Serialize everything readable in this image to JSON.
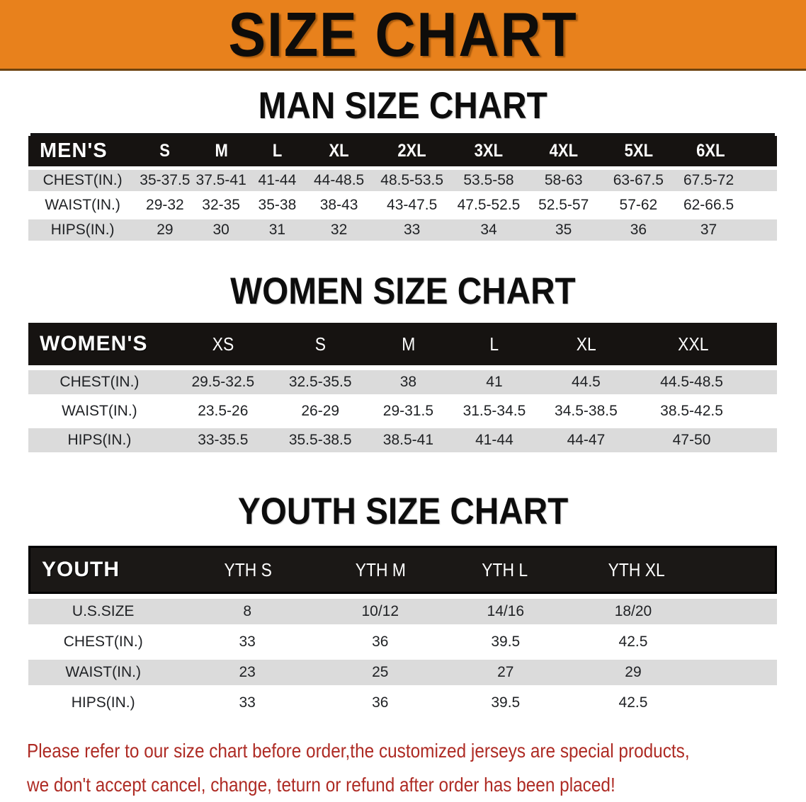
{
  "banner": {
    "title": "SIZE CHART"
  },
  "colors": {
    "banner_orange": "#E8811C",
    "banner_bottom_edge": "#6E4310",
    "table_header_black": "#161311",
    "row_stripe_gray": "#DBDBDB",
    "note_red": "#AE2B24"
  },
  "sections": [
    {
      "title": "MAN SIZE CHART",
      "table": {
        "header_label": "MEN'S",
        "columns": [
          "S",
          "M",
          "L",
          "XL",
          "2XL",
          "3XL",
          "4XL",
          "5XL",
          "6XL"
        ],
        "rows": [
          {
            "label": "CHEST(IN.)",
            "values": [
              "35-37.5",
              "37.5-41",
              "41-44",
              "44-48.5",
              "48.5-53.5",
              "53.5-58",
              "58-63",
              "63-67.5",
              "67.5-72"
            ]
          },
          {
            "label": "WAIST(IN.)",
            "values": [
              "29-32",
              "32-35",
              "35-38",
              "38-43",
              "43-47.5",
              "47.5-52.5",
              "52.5-57",
              "57-62",
              "62-66.5"
            ]
          },
          {
            "label": "HIPS(IN.)",
            "values": [
              "29",
              "30",
              "31",
              "32",
              "33",
              "34",
              "35",
              "36",
              "37"
            ]
          }
        ]
      }
    },
    {
      "title": "WOMEN SIZE CHART",
      "table": {
        "header_label": "WOMEN'S",
        "columns": [
          "XS",
          "S",
          "M",
          "L",
          "XL",
          "XXL"
        ],
        "rows": [
          {
            "label": "CHEST(IN.)",
            "values": [
              "29.5-32.5",
              "32.5-35.5",
              "38",
              "41",
              "44.5",
              "44.5-48.5"
            ]
          },
          {
            "label": "WAIST(IN.)",
            "values": [
              "23.5-26",
              "26-29",
              "29-31.5",
              "31.5-34.5",
              "34.5-38.5",
              "38.5-42.5"
            ]
          },
          {
            "label": "HIPS(IN.)",
            "values": [
              "33-35.5",
              "35.5-38.5",
              "38.5-41",
              "41-44",
              "44-47",
              "47-50"
            ]
          }
        ]
      }
    },
    {
      "title": "YOUTH SIZE CHART",
      "table": {
        "header_label": "YOUTH",
        "columns": [
          "YTH S",
          "YTH M",
          "YTH L",
          "YTH XL"
        ],
        "rows": [
          {
            "label": "U.S.SIZE",
            "values": [
              "8",
              "10/12",
              "14/16",
              "18/20"
            ]
          },
          {
            "label": "CHEST(IN.)",
            "values": [
              "33",
              "36",
              "39.5",
              "42.5"
            ]
          },
          {
            "label": "WAIST(IN.)",
            "values": [
              "23",
              "25",
              "27",
              "29"
            ]
          },
          {
            "label": "HIPS(IN.)",
            "values": [
              "33",
              "36",
              "39.5",
              "42.5"
            ]
          }
        ]
      }
    }
  ],
  "footer": {
    "line1": "Please refer to our size chart before order,the customized jerseys are special products,",
    "line2": "we don't accept cancel, change, teturn or refund after order has been placed!"
  },
  "chart_data": [
    {
      "type": "table",
      "title": "MAN SIZE CHART",
      "columns": [
        "MEN'S",
        "S",
        "M",
        "L",
        "XL",
        "2XL",
        "3XL",
        "4XL",
        "5XL",
        "6XL"
      ],
      "rows": [
        [
          "CHEST(IN.)",
          "35-37.5",
          "37.5-41",
          "41-44",
          "44-48.5",
          "48.5-53.5",
          "53.5-58",
          "58-63",
          "63-67.5",
          "67.5-72"
        ],
        [
          "WAIST(IN.)",
          "29-32",
          "32-35",
          "35-38",
          "38-43",
          "43-47.5",
          "47.5-52.5",
          "52.5-57",
          "57-62",
          "62-66.5"
        ],
        [
          "HIPS(IN.)",
          "29",
          "30",
          "31",
          "32",
          "33",
          "34",
          "35",
          "36",
          "37"
        ]
      ]
    },
    {
      "type": "table",
      "title": "WOMEN SIZE CHART",
      "columns": [
        "WOMEN'S",
        "XS",
        "S",
        "M",
        "L",
        "XL",
        "XXL"
      ],
      "rows": [
        [
          "CHEST(IN.)",
          "29.5-32.5",
          "32.5-35.5",
          "38",
          "41",
          "44.5",
          "44.5-48.5"
        ],
        [
          "WAIST(IN.)",
          "23.5-26",
          "26-29",
          "29-31.5",
          "31.5-34.5",
          "34.5-38.5",
          "38.5-42.5"
        ],
        [
          "HIPS(IN.)",
          "33-35.5",
          "35.5-38.5",
          "38.5-41",
          "41-44",
          "44-47",
          "47-50"
        ]
      ]
    },
    {
      "type": "table",
      "title": "YOUTH SIZE CHART",
      "columns": [
        "YOUTH",
        "YTH S",
        "YTH M",
        "YTH L",
        "YTH XL"
      ],
      "rows": [
        [
          "U.S.SIZE",
          "8",
          "10/12",
          "14/16",
          "18/20"
        ],
        [
          "CHEST(IN.)",
          "33",
          "36",
          "39.5",
          "42.5"
        ],
        [
          "WAIST(IN.)",
          "23",
          "25",
          "27",
          "29"
        ],
        [
          "HIPS(IN.)",
          "33",
          "36",
          "39.5",
          "42.5"
        ]
      ]
    }
  ]
}
